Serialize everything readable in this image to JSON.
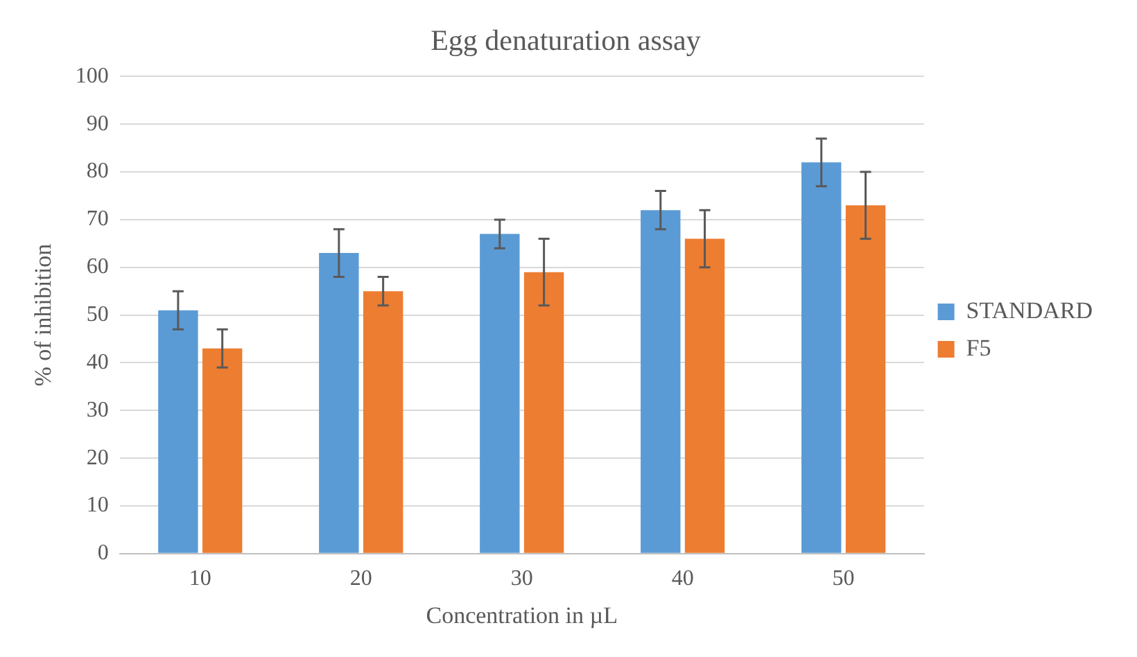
{
  "chart_data": {
    "type": "bar",
    "title": "Egg denaturation assay",
    "xlabel": "Concentration in µL",
    "ylabel": "% of inhibition",
    "categories": [
      "10",
      "20",
      "30",
      "40",
      "50"
    ],
    "series": [
      {
        "name": "STANDARD",
        "color": "#5b9bd5",
        "values": [
          51,
          63,
          67,
          72,
          82
        ],
        "errors": [
          4,
          5,
          3,
          4,
          5
        ]
      },
      {
        "name": "F5",
        "color": "#ed7d31",
        "values": [
          43,
          55,
          59,
          66,
          73
        ],
        "errors": [
          4,
          3,
          7,
          6,
          7
        ]
      }
    ],
    "ylim": [
      0,
      100
    ],
    "yticks": [
      0,
      10,
      20,
      30,
      40,
      50,
      60,
      70,
      80,
      90,
      100
    ],
    "grid": "y",
    "legend": "right"
  }
}
